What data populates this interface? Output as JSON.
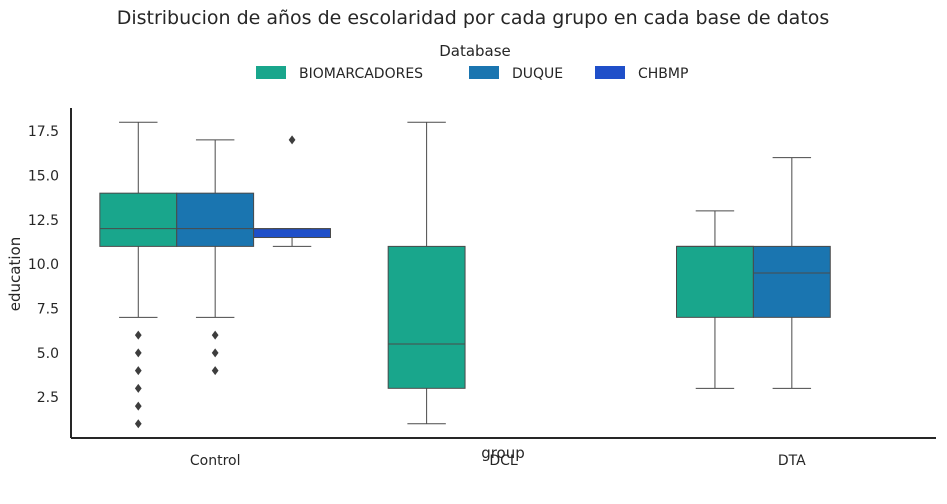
{
  "chart_data": {
    "type": "box",
    "title": "Distribucion de años de escolaridad por cada grupo en cada base de datos",
    "xlabel": "group",
    "ylabel": "education",
    "categories": [
      "Control",
      "DCL",
      "DTA"
    ],
    "ylim": [
      0.2,
      18.8
    ],
    "yticks": [
      2.5,
      5.0,
      7.5,
      10.0,
      12.5,
      15.0,
      17.5
    ],
    "ytick_labels": [
      "2.5",
      "5.0",
      "7.5",
      "10.0",
      "12.5",
      "15.0",
      "17.5"
    ],
    "legend": {
      "title": "Database",
      "placement": "top-center"
    },
    "series": [
      {
        "name": "BIOMARCADORES",
        "color": "#19a68c",
        "boxes": [
          {
            "category": "Control",
            "whisker_low": 7,
            "q1": 11,
            "median": 12,
            "q3": 14,
            "whisker_high": 18,
            "outliers": [
              6,
              5,
              4,
              3,
              2,
              1
            ]
          },
          {
            "category": "DCL",
            "whisker_low": 1,
            "q1": 3,
            "median": 5.5,
            "q3": 11,
            "whisker_high": 18,
            "outliers": []
          },
          {
            "category": "DTA",
            "whisker_low": 3,
            "q1": 7,
            "median": 11,
            "q3": 11,
            "whisker_high": 13,
            "outliers": []
          }
        ]
      },
      {
        "name": "DUQUE",
        "color": "#1a75b0",
        "boxes": [
          {
            "category": "Control",
            "whisker_low": 7,
            "q1": 11,
            "median": 12,
            "q3": 14,
            "whisker_high": 17,
            "outliers": [
              6,
              5,
              4
            ]
          },
          {
            "category": "DTA",
            "whisker_low": 3,
            "q1": 7,
            "median": 9.5,
            "q3": 11,
            "whisker_high": 16,
            "outliers": []
          }
        ]
      },
      {
        "name": "CHBMP",
        "color": "#1f4fc9",
        "boxes": [
          {
            "category": "Control",
            "whisker_low": 11,
            "q1": 11.5,
            "median": 12,
            "q3": 12,
            "whisker_high": 12,
            "outliers": [
              17
            ]
          }
        ]
      }
    ],
    "grid": false
  }
}
